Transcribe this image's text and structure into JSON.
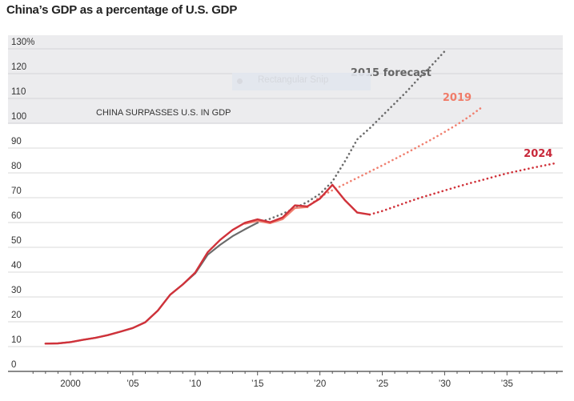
{
  "chart_data": {
    "type": "line",
    "title": "China’s GDP as a percentage of U.S. GDP",
    "xlabel": "",
    "ylabel": "",
    "xlim": [
      1996,
      2039.5
    ],
    "ylim": [
      0,
      130
    ],
    "y_ticks": [
      {
        "value": 0,
        "label": "0"
      },
      {
        "value": 10,
        "label": "10"
      },
      {
        "value": 20,
        "label": "20"
      },
      {
        "value": 30,
        "label": "30"
      },
      {
        "value": 40,
        "label": "40"
      },
      {
        "value": 50,
        "label": "50"
      },
      {
        "value": 60,
        "label": "60"
      },
      {
        "value": 70,
        "label": "70"
      },
      {
        "value": 80,
        "label": "80"
      },
      {
        "value": 90,
        "label": "90"
      },
      {
        "value": 100,
        "label": "100"
      },
      {
        "value": 110,
        "label": "110"
      },
      {
        "value": 120,
        "label": "120"
      },
      {
        "value": 130,
        "label": "130%"
      }
    ],
    "x_ticks": [
      {
        "value": 2000,
        "label": "2000"
      },
      {
        "value": 2005,
        "label": "’05"
      },
      {
        "value": 2010,
        "label": "’10"
      },
      {
        "value": 2015,
        "label": "’15"
      },
      {
        "value": 2020,
        "label": "’20"
      },
      {
        "value": 2025,
        "label": "’25"
      },
      {
        "value": 2030,
        "label": "’30"
      },
      {
        "value": 2035,
        "label": "’35"
      }
    ],
    "grid": true,
    "shaded_band": {
      "from": 100,
      "to": 130,
      "label": "CHINA SURPASSES U.S. IN GDP",
      "color": "#ececee"
    },
    "series": [
      {
        "name": "2015 forecast",
        "color": "#6b6b6b",
        "label_color": "#666666",
        "actual": {
          "x": [
            1998,
            1999,
            2000,
            2001,
            2002,
            2003,
            2004,
            2005,
            2006,
            2007,
            2008,
            2009,
            2010,
            2011,
            2012,
            2013,
            2014,
            2015
          ],
          "y": [
            11.2,
            11.3,
            11.8,
            12.7,
            13.5,
            14.6,
            16.0,
            17.5,
            19.8,
            24.5,
            30.9,
            35.0,
            39.5,
            47.0,
            51.0,
            54.5,
            57.3,
            59.9
          ]
        },
        "forecast": {
          "x": [
            2015,
            2016,
            2017,
            2018,
            2019,
            2020,
            2021,
            2022,
            2023,
            2024,
            2025,
            2026,
            2027,
            2028,
            2029,
            2030
          ],
          "y": [
            59.9,
            61.5,
            63.5,
            65.8,
            68.3,
            71.5,
            76.5,
            84.6,
            93.5,
            98.0,
            103.0,
            108.0,
            113.0,
            118.5,
            123.5,
            129.0
          ]
        }
      },
      {
        "name": "2019",
        "color": "#f08070",
        "label_color": "#f07c69",
        "actual": {
          "x": [
            2014,
            2015,
            2016,
            2017,
            2018,
            2019
          ],
          "y": [
            59.5,
            60.6,
            59.7,
            61.3,
            65.8,
            66.2
          ]
        },
        "forecast": {
          "x": [
            2019,
            2020,
            2021,
            2022,
            2023,
            2024,
            2025,
            2026,
            2027,
            2028,
            2029,
            2030,
            2031,
            2032,
            2033
          ],
          "y": [
            66.2,
            70.3,
            73.0,
            75.5,
            78.0,
            80.5,
            83.0,
            85.6,
            88.2,
            90.9,
            93.6,
            96.5,
            99.5,
            102.8,
            106.5
          ]
        }
      },
      {
        "name": "2024",
        "color": "#d0323a",
        "label_color": "#c8283a",
        "actual": {
          "x": [
            1998,
            1999,
            2000,
            2001,
            2002,
            2003,
            2004,
            2005,
            2006,
            2007,
            2008,
            2009,
            2010,
            2011,
            2012,
            2013,
            2014,
            2015,
            2016,
            2017,
            2018,
            2019,
            2020,
            2021,
            2022,
            2023,
            2024
          ],
          "y": [
            11.2,
            11.3,
            11.8,
            12.7,
            13.5,
            14.6,
            16.0,
            17.5,
            19.8,
            24.5,
            30.9,
            35.0,
            39.8,
            48.0,
            53.0,
            57.0,
            59.9,
            61.3,
            60.1,
            62.0,
            66.9,
            66.5,
            69.6,
            75.2,
            69.0,
            64.0,
            63.2
          ]
        },
        "forecast": {
          "x": [
            2024,
            2025,
            2026,
            2027,
            2028,
            2029,
            2030,
            2031,
            2032,
            2033,
            2034,
            2035,
            2036,
            2037,
            2038,
            2039
          ],
          "y": [
            63.2,
            64.6,
            66.4,
            68.2,
            69.9,
            71.4,
            72.9,
            74.4,
            75.8,
            77.1,
            78.5,
            79.8,
            80.9,
            82.0,
            83.0,
            84.0
          ]
        }
      }
    ],
    "annotations": [
      {
        "text": "2015 forecast",
        "series": "2015 forecast",
        "x": 2025.7,
        "y": 119
      },
      {
        "text": "2019",
        "series": "2019",
        "x": 2031,
        "y": 109
      },
      {
        "text": "2024",
        "series": "2024",
        "x": 2037.5,
        "y": 86.5
      }
    ]
  },
  "overlay": {
    "snip_label": "Rectangular Snip"
  }
}
